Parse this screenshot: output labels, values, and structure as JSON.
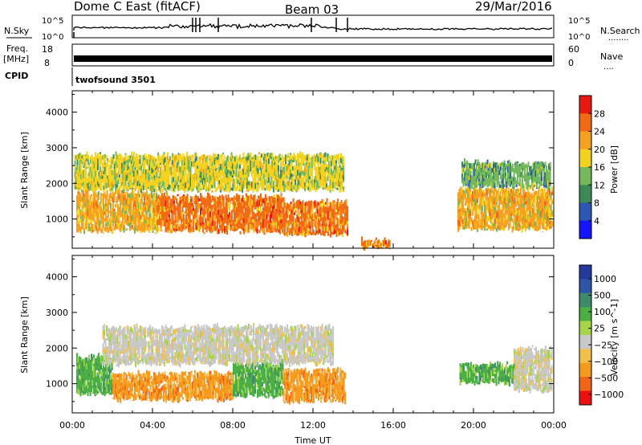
{
  "header": {
    "station": "Dome C East (fitACF)",
    "beam": "Beam 03",
    "date": "29/Mar/2016"
  },
  "nsky_panel": {
    "left_label": "N.Sky",
    "right_label": "N.Search",
    "right_dots": "........",
    "ticks_left": [
      "10^5",
      "10^0"
    ],
    "ticks_right": [
      "10^5",
      "10^0"
    ]
  },
  "freq_panel": {
    "left_label_1": "Freq.",
    "left_label_2": "[MHz]",
    "right_label": "Nave",
    "right_dots": "....",
    "ticks_left": [
      "18",
      "8"
    ],
    "ticks_right": [
      "60",
      "0"
    ]
  },
  "cpid_panel": {
    "left_label": "CPID",
    "program": "twofsound 3501"
  },
  "colors": {
    "power": [
      "#1414ff",
      "#2b57b5",
      "#3c8a55",
      "#73b85a",
      "#f2d21f",
      "#f5a01e",
      "#f06a14",
      "#e8170f"
    ],
    "velocity": [
      "#ee1010",
      "#f26418",
      "#f49b1e",
      "#f2c04a",
      "#c8c8c8",
      "#a6d54a",
      "#4aae43",
      "#3f8a6a",
      "#2d56a8",
      "#233a9c"
    ]
  },
  "chart_data": [
    {
      "type": "heatmap",
      "title": "",
      "xlabel": "",
      "ylabel": "Slant Range [km]",
      "x_ticks": [
        "00:00",
        "04:00",
        "08:00",
        "12:00",
        "16:00",
        "20:00",
        "00:00"
      ],
      "xlim_hours": [
        0,
        24
      ],
      "y_ticks": [
        1000,
        2000,
        3000,
        4000
      ],
      "ylim_km": [
        180,
        4600
      ],
      "colorbar": {
        "label": "Power [dB]",
        "ticks": [
          4,
          8,
          12,
          16,
          20,
          24,
          28
        ],
        "range": [
          0,
          32
        ]
      },
      "echo_regions": [
        {
          "t_start": 0.2,
          "t_end": 4.2,
          "r_low": 650,
          "r_high": 1750,
          "level": 24
        },
        {
          "t_start": 4.2,
          "t_end": 10.5,
          "r_low": 650,
          "r_high": 1650,
          "level": 28
        },
        {
          "t_start": 10.5,
          "t_end": 13.7,
          "r_low": 550,
          "r_high": 1500,
          "level": 28
        },
        {
          "t_start": 0.1,
          "t_end": 13.5,
          "r_low": 1800,
          "r_high": 2800,
          "level": 16
        },
        {
          "t_start": 14.4,
          "t_end": 15.8,
          "r_low": 200,
          "r_high": 400,
          "level": 28
        },
        {
          "t_start": 19.2,
          "t_end": 23.9,
          "r_low": 700,
          "r_high": 1850,
          "level": 24
        },
        {
          "t_start": 19.4,
          "t_end": 23.8,
          "r_low": 1900,
          "r_high": 2600,
          "level": 12
        }
      ]
    },
    {
      "type": "heatmap",
      "title": "",
      "xlabel": "Time UT",
      "ylabel": "Slant Range [km]",
      "x_ticks": [
        "00:00",
        "04:00",
        "08:00",
        "12:00",
        "16:00",
        "20:00",
        "00:00"
      ],
      "xlim_hours": [
        0,
        24
      ],
      "y_ticks": [
        1000,
        2000,
        3000,
        4000
      ],
      "ylim_km": [
        180,
        4600
      ],
      "colorbar": {
        "label": "Velocity [m s^-1]",
        "ticks": [
          "1000",
          "500",
          "100",
          "25",
          "−25",
          "−100",
          "−500",
          "−1000"
        ]
      },
      "echo_regions": [
        {
          "t_start": 0.2,
          "t_end": 2.0,
          "r_low": 700,
          "r_high": 1750,
          "level": "100"
        },
        {
          "t_start": 2.0,
          "t_end": 8.0,
          "r_low": 550,
          "r_high": 1300,
          "level": "-100"
        },
        {
          "t_start": 8.0,
          "t_end": 10.5,
          "r_low": 650,
          "r_high": 1600,
          "level": "100"
        },
        {
          "t_start": 10.5,
          "t_end": 13.6,
          "r_low": 500,
          "r_high": 1400,
          "level": "-100"
        },
        {
          "t_start": 1.5,
          "t_end": 13.0,
          "r_low": 1550,
          "r_high": 2600,
          "level": "25"
        },
        {
          "t_start": 19.3,
          "t_end": 22.0,
          "r_low": 1000,
          "r_high": 1550,
          "level": "100"
        },
        {
          "t_start": 22.0,
          "t_end": 23.9,
          "r_low": 800,
          "r_high": 2000,
          "level": "25"
        }
      ]
    }
  ]
}
